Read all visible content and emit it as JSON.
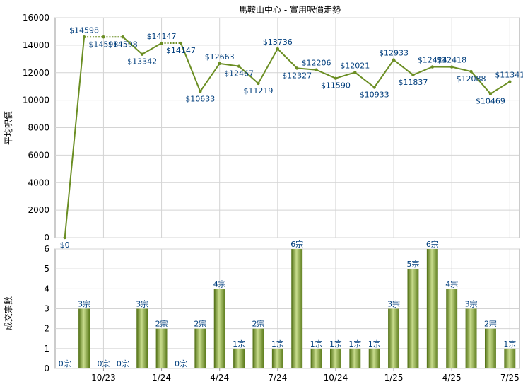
{
  "chart_data": [
    {
      "type": "line",
      "title": "馬鞍山中心 - 實用呎價走勢",
      "ylabel": "平均呎價",
      "ylim": [
        0,
        16000
      ],
      "yticks": [
        0,
        2000,
        4000,
        6000,
        8000,
        10000,
        12000,
        14000,
        16000
      ],
      "grid": true,
      "series_color": "#6b8e23",
      "points": [
        {
          "value": 0,
          "label": "$0",
          "dotted_to_next": false
        },
        {
          "value": 14598,
          "label": "$14598",
          "dotted_to_next": true
        },
        {
          "value": 14598,
          "label": "$14598",
          "dotted_to_next": true
        },
        {
          "value": 14598,
          "label": "$14598",
          "dotted_to_next": false
        },
        {
          "value": 13342,
          "label": "$13342",
          "dotted_to_next": false
        },
        {
          "value": 14147,
          "label": "$14147",
          "dotted_to_next": true
        },
        {
          "value": 14147,
          "label": "$14147",
          "dotted_to_next": false
        },
        {
          "value": 10633,
          "label": "$10633",
          "dotted_to_next": false
        },
        {
          "value": 12663,
          "label": "$12663",
          "dotted_to_next": false
        },
        {
          "value": 12467,
          "label": "$12467",
          "dotted_to_next": false
        },
        {
          "value": 11219,
          "label": "$11219",
          "dotted_to_next": false
        },
        {
          "value": 13736,
          "label": "$13736",
          "dotted_to_next": false
        },
        {
          "value": 12327,
          "label": "$12327",
          "dotted_to_next": false
        },
        {
          "value": 12206,
          "label": "$12206",
          "dotted_to_next": false
        },
        {
          "value": 11590,
          "label": "$11590",
          "dotted_to_next": false
        },
        {
          "value": 12021,
          "label": "$12021",
          "dotted_to_next": false
        },
        {
          "value": 10933,
          "label": "$10933",
          "dotted_to_next": false
        },
        {
          "value": 12933,
          "label": "$12933",
          "dotted_to_next": false
        },
        {
          "value": 11837,
          "label": "$11837",
          "dotted_to_next": false
        },
        {
          "value": 12424,
          "label": "$12424",
          "dotted_to_next": false
        },
        {
          "value": 12418,
          "label": "$12418",
          "dotted_to_next": false
        },
        {
          "value": 12088,
          "label": "$12088",
          "dotted_to_next": false
        },
        {
          "value": 10469,
          "label": "$10469",
          "dotted_to_next": false
        },
        {
          "value": 11341,
          "label": "$11341",
          "dotted_to_next": false
        }
      ]
    },
    {
      "type": "bar",
      "ylabel": "成交宗數",
      "ylim": [
        0,
        6
      ],
      "yticks": [
        0,
        1,
        2,
        3,
        4,
        5,
        6
      ],
      "grid": true,
      "values": [
        0,
        3,
        0,
        0,
        3,
        2,
        0,
        2,
        4,
        1,
        2,
        1,
        6,
        1,
        1,
        1,
        1,
        3,
        5,
        6,
        4,
        3,
        2,
        1
      ],
      "value_labels": [
        "0宗",
        "3宗",
        "0宗",
        "0宗",
        "3宗",
        "2宗",
        "0宗",
        "2宗",
        "4宗",
        "1宗",
        "2宗",
        "1宗",
        "6宗",
        "1宗",
        "1宗",
        "1宗",
        "1宗",
        "3宗",
        "5宗",
        "6宗",
        "4宗",
        "3宗",
        "2宗",
        "1宗"
      ],
      "x_tick_labels": [
        {
          "index": 2,
          "label": "10/23"
        },
        {
          "index": 5,
          "label": "1/24"
        },
        {
          "index": 8,
          "label": "4/24"
        },
        {
          "index": 11,
          "label": "7/24"
        },
        {
          "index": 14,
          "label": "10/24"
        },
        {
          "index": 17,
          "label": "1/25"
        },
        {
          "index": 20,
          "label": "4/25"
        },
        {
          "index": 23,
          "label": "7/25"
        }
      ],
      "bar_color": "#7a9a2e"
    }
  ]
}
